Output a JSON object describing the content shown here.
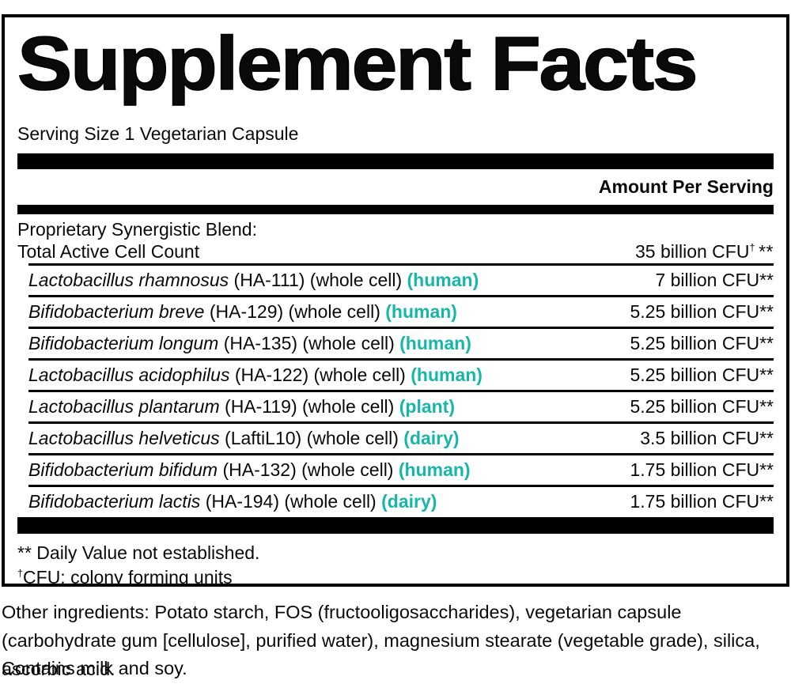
{
  "panel": {
    "title": "Supplement Facts",
    "serving_size": "Serving Size 1 Vegetarian Capsule",
    "amount_header": "Amount Per Serving",
    "blend_label": "Proprietary Synergistic Blend:",
    "total_label": "Total Active Cell Count",
    "total_amount_main": "35 billion CFU",
    "total_amount_dagger": "†",
    "total_amount_stars": "**",
    "footnote_dv": "** Daily Value not established.",
    "footnote_cfu_dagger": "†",
    "footnote_cfu_text": "CFU: colony forming units"
  },
  "ingredients": [
    {
      "name": "Lactobacillus rhamnosus",
      "detail": "(HA-111) (whole cell)",
      "source": "(human)",
      "amount": "7 billion CFU**"
    },
    {
      "name": "Bifidobacterium breve",
      "detail": "(HA-129) (whole cell)",
      "source": "(human)",
      "amount": "5.25 billion CFU**"
    },
    {
      "name": "Bifidobacterium longum",
      "detail": "(HA-135) (whole cell)",
      "source": "(human)",
      "amount": "5.25 billion CFU**"
    },
    {
      "name": "Lactobacillus acidophilus",
      "detail": "(HA-122) (whole cell)",
      "source": "(human)",
      "amount": "5.25 billion CFU**"
    },
    {
      "name": "Lactobacillus plantarum",
      "detail": "(HA-119) (whole cell)",
      "source": "(plant)",
      "amount": "5.25 billion CFU**"
    },
    {
      "name": "Lactobacillus helveticus",
      "detail": "(LaftiL10) (whole cell)",
      "source": "(dairy)",
      "amount": "3.5 billion CFU**"
    },
    {
      "name": "Bifidobacterium bifidum",
      "detail": "(HA-132) (whole cell)",
      "source": "(human)",
      "amount": "1.75 billion CFU**"
    },
    {
      "name": "Bifidobacterium lactis",
      "detail": "(HA-194) (whole cell)",
      "source": "(dairy)",
      "amount": "1.75 billion CFU**"
    }
  ],
  "footer": {
    "other_ingredients": "Other ingredients: Potato starch, FOS (fructooligosaccharides), vegetarian capsule (carbohydrate gum [cellulose], purified water), magnesium stearate (vegetable grade), silica, ascorbic acid.",
    "contains": "Contains milk and soy."
  },
  "colors": {
    "accent_teal": "#15b7a8",
    "rule_black": "#000000"
  }
}
